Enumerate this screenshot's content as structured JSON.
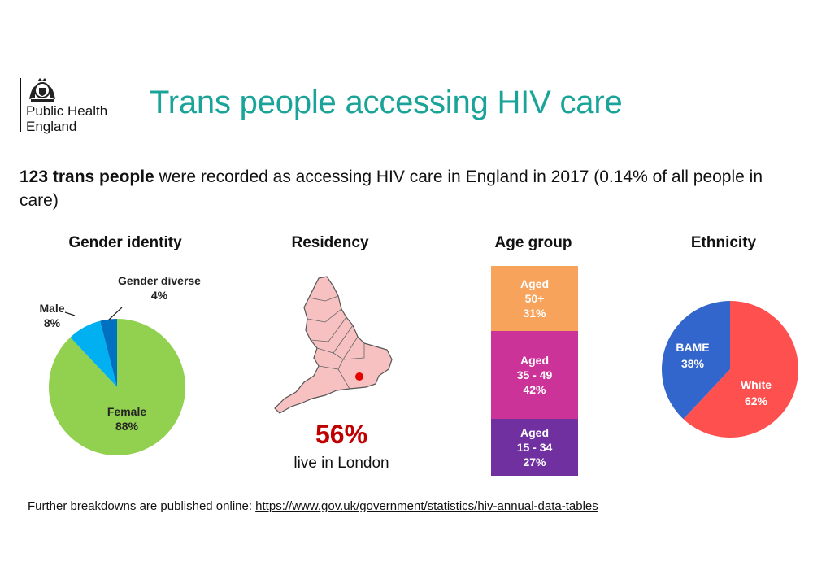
{
  "header": {
    "org_name_line1": "Public Health",
    "org_name_line2": "England",
    "title": "Trans people accessing HIV care"
  },
  "summary": {
    "bold": "123 trans people",
    "rest": " were recorded as accessing HIV care in England in 2017 (0.14% of all people in care)"
  },
  "footer": {
    "text": "Further breakdowns are published online: ",
    "link": "https://www.gov.uk/government/statistics/hiv-annual-data-tables"
  },
  "residency": {
    "title": "Residency",
    "value": "56%",
    "caption": "live in London",
    "fill_color": "#f7c1c1",
    "london_color": "#e60000"
  },
  "chart_data": [
    {
      "type": "pie",
      "title": "Gender identity",
      "categories": [
        "Female",
        "Male",
        "Gender diverse"
      ],
      "values": [
        88,
        8,
        4
      ],
      "labels": [
        "88%",
        "8%",
        "4%"
      ],
      "colors": [
        "#92d050",
        "#00b0f0",
        "#0070c0"
      ]
    },
    {
      "type": "bar",
      "title": "Age group",
      "categories": [
        "Aged 15 - 34",
        "Aged 35 - 49",
        "Aged 50+"
      ],
      "values": [
        27,
        42,
        31
      ],
      "labels": [
        "27%",
        "42%",
        "31%"
      ],
      "colors": [
        "#7030a0",
        "#cc3399",
        "#f7a35c"
      ]
    },
    {
      "type": "pie",
      "title": "Ethnicity",
      "categories": [
        "White",
        "BAME"
      ],
      "values": [
        62,
        38
      ],
      "labels": [
        "62%",
        "38%"
      ],
      "colors": [
        "#ff5050",
        "#3366cc"
      ]
    }
  ]
}
